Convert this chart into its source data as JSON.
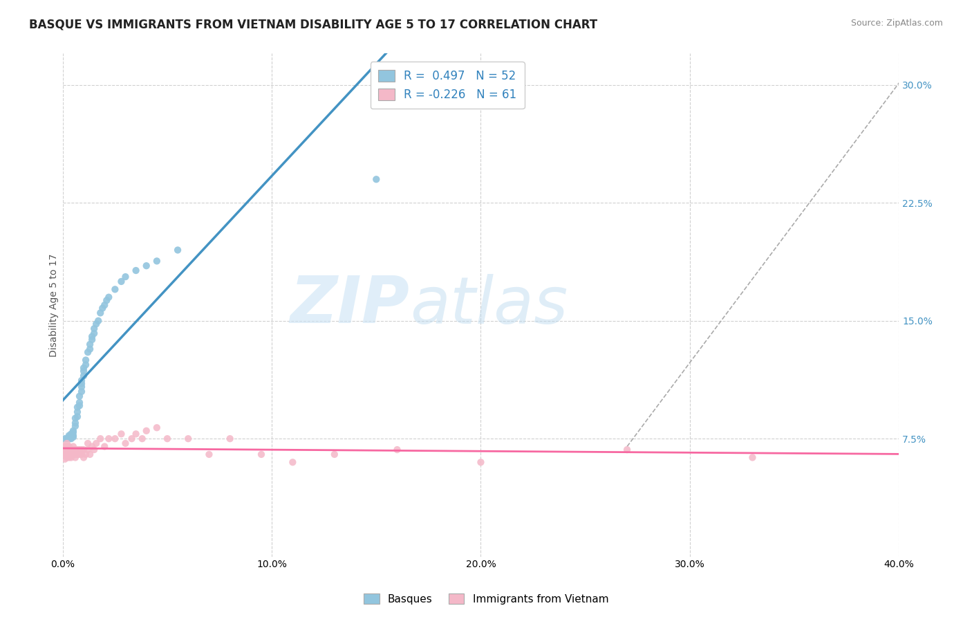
{
  "title": "BASQUE VS IMMIGRANTS FROM VIETNAM DISABILITY AGE 5 TO 17 CORRELATION CHART",
  "source": "Source: ZipAtlas.com",
  "ylabel": "Disability Age 5 to 17",
  "xlim": [
    0.0,
    0.4
  ],
  "ylim": [
    0.0,
    0.32
  ],
  "yticks_right": [
    0.075,
    0.15,
    0.225,
    0.3
  ],
  "yticklabels_right": [
    "7.5%",
    "15.0%",
    "22.5%",
    "30.0%"
  ],
  "xticks": [
    0.0,
    0.1,
    0.2,
    0.3,
    0.4
  ],
  "xticklabels": [
    "0.0%",
    "10.0%",
    "20.0%",
    "30.0%",
    "40.0%"
  ],
  "legend_r1": "R =  0.497",
  "legend_n1": "N = 52",
  "legend_r2": "R = -0.226",
  "legend_n2": "N = 61",
  "blue_color": "#92c5de",
  "pink_color": "#f4b8c8",
  "blue_line_color": "#4393c3",
  "pink_line_color": "#f768a1",
  "grid_color": "#d0d0d0",
  "background_color": "#ffffff",
  "watermark_zip": "ZIP",
  "watermark_atlas": "atlas",
  "title_fontsize": 12,
  "axis_label_fontsize": 10,
  "tick_fontsize": 10,
  "legend_fontsize": 12,
  "basque_x": [
    0.001,
    0.002,
    0.003,
    0.003,
    0.003,
    0.004,
    0.004,
    0.004,
    0.005,
    0.005,
    0.005,
    0.005,
    0.006,
    0.006,
    0.006,
    0.007,
    0.007,
    0.007,
    0.008,
    0.008,
    0.008,
    0.009,
    0.009,
    0.009,
    0.009,
    0.01,
    0.01,
    0.01,
    0.011,
    0.011,
    0.012,
    0.013,
    0.013,
    0.014,
    0.014,
    0.015,
    0.015,
    0.016,
    0.017,
    0.018,
    0.019,
    0.02,
    0.021,
    0.022,
    0.025,
    0.028,
    0.03,
    0.035,
    0.04,
    0.045,
    0.055,
    0.15
  ],
  "basque_y": [
    0.075,
    0.075,
    0.075,
    0.076,
    0.077,
    0.075,
    0.076,
    0.078,
    0.076,
    0.077,
    0.079,
    0.08,
    0.083,
    0.085,
    0.088,
    0.089,
    0.092,
    0.095,
    0.096,
    0.098,
    0.102,
    0.105,
    0.108,
    0.11,
    0.112,
    0.115,
    0.118,
    0.12,
    0.122,
    0.125,
    0.13,
    0.132,
    0.135,
    0.138,
    0.14,
    0.142,
    0.145,
    0.148,
    0.15,
    0.155,
    0.158,
    0.16,
    0.163,
    0.165,
    0.17,
    0.175,
    0.178,
    0.182,
    0.185,
    0.188,
    0.195,
    0.24
  ],
  "vietnam_x": [
    0.0,
    0.0,
    0.001,
    0.001,
    0.001,
    0.001,
    0.002,
    0.002,
    0.002,
    0.002,
    0.002,
    0.003,
    0.003,
    0.003,
    0.003,
    0.004,
    0.004,
    0.004,
    0.005,
    0.005,
    0.005,
    0.006,
    0.006,
    0.006,
    0.007,
    0.007,
    0.008,
    0.008,
    0.009,
    0.009,
    0.01,
    0.01,
    0.011,
    0.012,
    0.012,
    0.013,
    0.014,
    0.015,
    0.016,
    0.018,
    0.02,
    0.022,
    0.025,
    0.028,
    0.03,
    0.033,
    0.035,
    0.038,
    0.04,
    0.045,
    0.05,
    0.06,
    0.07,
    0.08,
    0.095,
    0.11,
    0.13,
    0.16,
    0.2,
    0.27,
    0.33
  ],
  "vietnam_y": [
    0.065,
    0.07,
    0.062,
    0.065,
    0.068,
    0.07,
    0.063,
    0.065,
    0.068,
    0.07,
    0.072,
    0.063,
    0.065,
    0.068,
    0.07,
    0.063,
    0.065,
    0.068,
    0.065,
    0.068,
    0.07,
    0.063,
    0.065,
    0.068,
    0.065,
    0.068,
    0.065,
    0.068,
    0.065,
    0.068,
    0.063,
    0.068,
    0.065,
    0.068,
    0.072,
    0.065,
    0.07,
    0.068,
    0.072,
    0.075,
    0.07,
    0.075,
    0.075,
    0.078,
    0.072,
    0.075,
    0.078,
    0.075,
    0.08,
    0.082,
    0.075,
    0.075,
    0.065,
    0.075,
    0.065,
    0.06,
    0.065,
    0.068,
    0.06,
    0.068,
    0.063
  ],
  "diag_line_x": [
    0.27,
    0.405
  ],
  "diag_line_y": [
    0.07,
    0.31
  ]
}
